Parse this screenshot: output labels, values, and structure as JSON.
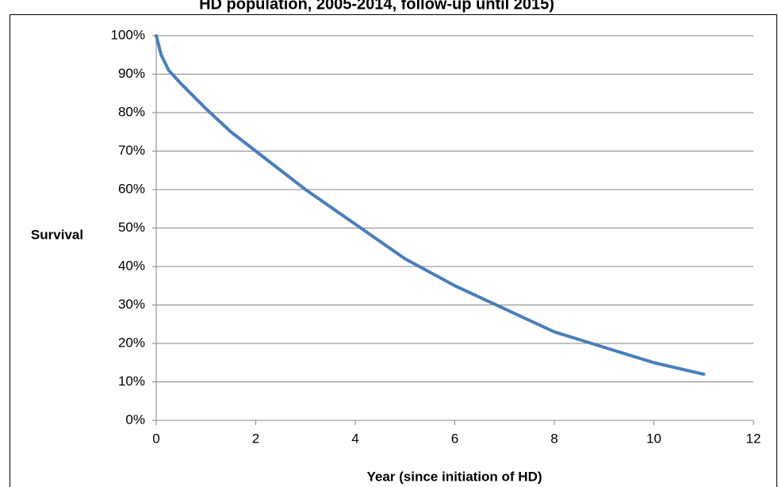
{
  "chart_data": {
    "type": "line",
    "title": "HD population, 2005-2014, follow-up until 2015)",
    "ylabel": "Survival",
    "xlabel": "Year (since initiation of HD)",
    "x": [
      0,
      0.1,
      0.25,
      0.5,
      1,
      1.5,
      2,
      2.5,
      3,
      3.5,
      4,
      4.5,
      5,
      5.5,
      6,
      6.5,
      7,
      7.5,
      8,
      8.5,
      9,
      9.5,
      10,
      10.5,
      11
    ],
    "values": [
      100,
      95,
      91,
      87.5,
      81,
      75,
      70,
      65,
      60,
      55.5,
      51,
      46.5,
      42,
      38.5,
      35,
      32,
      29,
      26,
      23,
      21,
      19,
      17,
      15,
      13.5,
      12
    ],
    "color": "#4a7ebb",
    "xlim": [
      0,
      12
    ],
    "xticks": [
      0,
      2,
      4,
      6,
      8,
      10,
      12
    ],
    "ylim": [
      0,
      100
    ],
    "yticks": [
      {
        "value": 0,
        "label": "0%"
      },
      {
        "value": 10,
        "label": "10%"
      },
      {
        "value": 20,
        "label": "20%"
      },
      {
        "value": 30,
        "label": "30%"
      },
      {
        "value": 40,
        "label": "40%"
      },
      {
        "value": 50,
        "label": "50%"
      },
      {
        "value": 60,
        "label": "60%"
      },
      {
        "value": 70,
        "label": "70%"
      },
      {
        "value": 80,
        "label": "80%"
      },
      {
        "value": 90,
        "label": "90%"
      },
      {
        "value": 100,
        "label": "100%"
      }
    ],
    "grid": true
  }
}
